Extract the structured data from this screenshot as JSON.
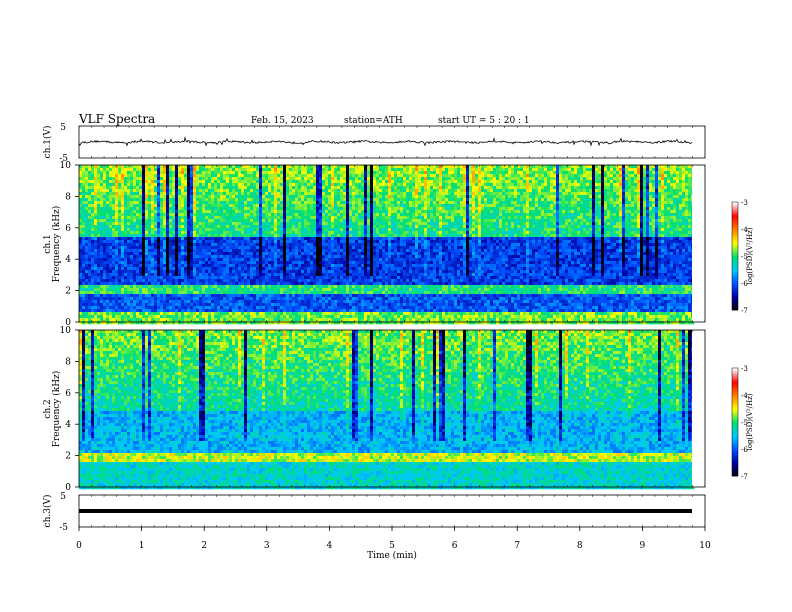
{
  "header": {
    "title": "VLF  Spectra",
    "date": "Feb. 15, 2023",
    "station": "station=ATH",
    "start": "start  UT  =   5  : 20 : 1"
  },
  "chart_data": [
    {
      "type": "line",
      "panel": "ch1-waveform",
      "ylabel": "ch.1(V)",
      "ylim": [
        -5,
        5
      ],
      "yticks": [
        "5",
        "-5"
      ],
      "xlim": [
        0,
        10
      ],
      "trace_range": [
        0,
        9.8
      ],
      "level_approx": 0
    },
    {
      "type": "heatmap",
      "panel": "ch1-spectrogram",
      "ylabel": "ch.1\nFrequency  (kHz)",
      "ylim": [
        0,
        10
      ],
      "yticks": [
        "0",
        "2",
        "4",
        "6",
        "8",
        "10"
      ],
      "colorbar": {
        "label": "log(PSD)(V²/Hz)",
        "range": [
          -7,
          -3
        ],
        "ticks": [
          "-3",
          "-4",
          "-5",
          "-6",
          "-7"
        ]
      }
    },
    {
      "type": "heatmap",
      "panel": "ch2-spectrogram",
      "ylabel": "ch.2\nFrequency  (kHz)",
      "ylim": [
        0,
        10
      ],
      "yticks": [
        "0",
        "2",
        "4",
        "6",
        "8",
        "10"
      ],
      "colorbar": {
        "label": "log(PSD)(V²/Hz)",
        "range": [
          -7,
          -3
        ],
        "ticks": [
          "-3",
          "-4",
          "-5",
          "-6",
          "-7"
        ]
      }
    },
    {
      "type": "line",
      "panel": "ch3-waveform",
      "ylabel": "ch.3(V)",
      "ylim": [
        -5,
        5
      ],
      "yticks": [
        "5",
        "-5"
      ],
      "trace_level": 0,
      "xlabel": "Time  (min)",
      "xlim": [
        0,
        10
      ],
      "xticks": [
        "0",
        "1",
        "2",
        "3",
        "4",
        "5",
        "6",
        "7",
        "8",
        "9",
        "10"
      ]
    }
  ],
  "colors": {
    "colormap": [
      "#000000",
      "#0000a0",
      "#0050ff",
      "#00c8ff",
      "#00e070",
      "#ffff00",
      "#ff8000",
      "#ff0000",
      "#ffffff"
    ]
  }
}
